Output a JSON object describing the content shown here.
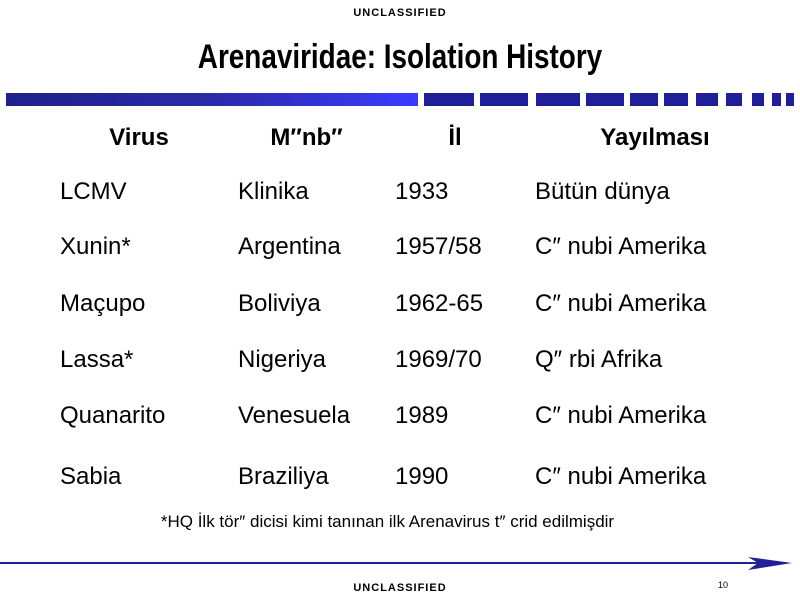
{
  "classification_top": "UNCLASSIFIED",
  "title": "Arenaviridae: Isolation History",
  "table": {
    "headers": [
      "Virus",
      "M″nb″",
      "İl",
      "Yayılması"
    ],
    "rows": [
      [
        "LCMV",
        "Klinika",
        "1933",
        "Bütün dünya"
      ],
      [
        "Xunin*",
        "Argentina",
        "1957/58",
        "C″ nubi Amerika"
      ],
      [
        "Maçupo",
        "Boliviya",
        "1962-65",
        "C″ nubi Amerika"
      ],
      [
        "Lassa*",
        "Nigeriya",
        "1969/70",
        "Q″ rbi Afrika"
      ],
      [
        "Quanarito",
        "Venesuela",
        "1989",
        "C″ nubi Amerika"
      ],
      [
        "Sabia",
        "Braziliya",
        "1990",
        "C″ nubi Amerika"
      ]
    ]
  },
  "footnote": "*HQ İlk tör″ dicisi kimi tanınan ilk Arenavirus t″ crid edilmişdir",
  "page_number": "10",
  "classification_bottom": "UNCLASSIFIED",
  "colors": {
    "accent": "#1f1f9a",
    "gradient_end": "#3b3bff"
  }
}
